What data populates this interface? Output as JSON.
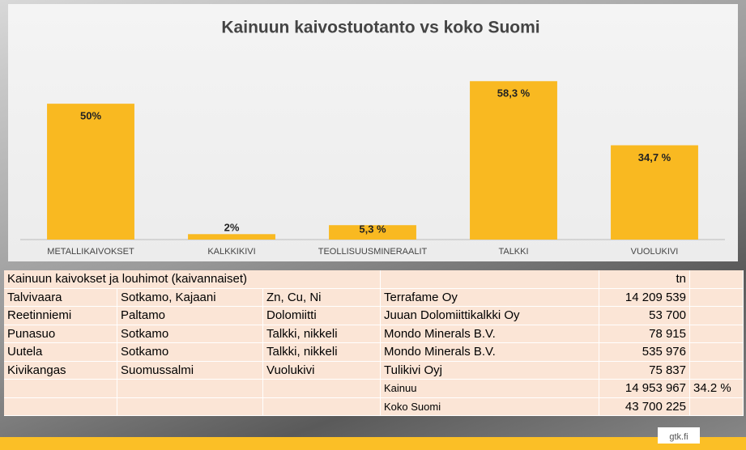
{
  "chart_data": {
    "type": "bar",
    "title": "Kainuun kaivostuotanto vs koko Suomi",
    "categories": [
      "METALLIKAIVOKSET",
      "KALKKIKIVI",
      "TEOLLISUUSMINERAALIT",
      "TALKKI",
      "VUOLUKIVI"
    ],
    "values": [
      50,
      2,
      5.3,
      58.3,
      34.7
    ],
    "value_labels": [
      "50%",
      "2%",
      "5,3 %",
      "58,3 %",
      "34,7 %"
    ],
    "color": "#f9b921",
    "ylim": [
      0,
      70
    ]
  },
  "table": {
    "title": "Kainuun kaivokset ja louhimot (kaivannaiset)",
    "unit": "tn",
    "rows": [
      [
        "Talvivaara",
        "Sotkamo, Kajaani",
        "Zn, Cu, Ni",
        "Terrafame Oy",
        "14 209 539",
        null
      ],
      [
        "Reetinniemi",
        "Paltamo",
        "Dolomiitti",
        "Juuan Dolomiittikalkki Oy",
        "53 700",
        null
      ],
      [
        "Punasuo",
        "Sotkamo",
        "Talkki, nikkeli",
        "Mondo Minerals B.V.",
        "78 915",
        null
      ],
      [
        "Uutela",
        "Sotkamo",
        "Talkki, nikkeli",
        "Mondo Minerals B.V.",
        "535 976",
        null
      ],
      [
        "Kivikangas",
        "Suomussalmi",
        "Vuolukivi",
        "Tulikivi Oyj",
        "75 837",
        null
      ],
      [
        null,
        null,
        null,
        "Kainuu",
        "14 953 967",
        "34.2 %"
      ],
      [
        null,
        null,
        null,
        "Koko Suomi",
        "43 700 225",
        null
      ]
    ]
  },
  "footer": {
    "site": "gtk.fi"
  }
}
